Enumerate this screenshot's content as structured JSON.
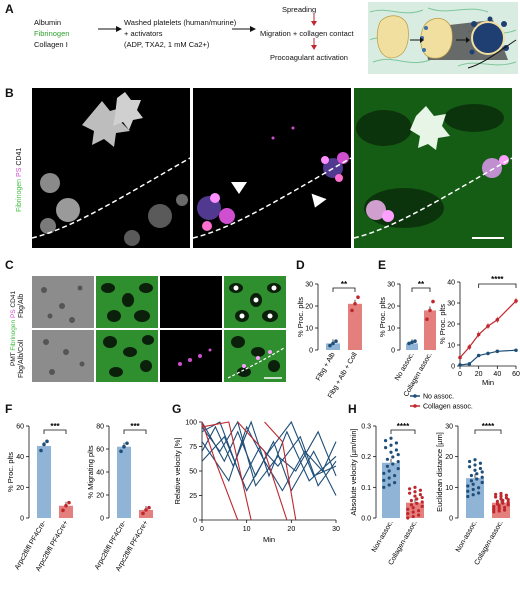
{
  "panelA": {
    "label": "A",
    "reagents": [
      "Albumin",
      "Fibrinogen",
      "Collagen I"
    ],
    "reagent_colors": [
      "#111111",
      "#2fa02f",
      "#111111"
    ],
    "treatment": [
      "Washed platelets (human/murine)",
      "+ activators",
      "(ADP, TXA2, 1 mM Ca2+)"
    ],
    "steps": [
      "Spreading",
      "Migration + collagen contact",
      "Procoagulant activation"
    ]
  },
  "panelB": {
    "label": "B",
    "side_label": [
      "Fibrinogen",
      "PS",
      "CD41"
    ],
    "side_colors": [
      "#3fbf3f",
      "#d04fd0",
      "#ffffff"
    ]
  },
  "panelC": {
    "label": "C",
    "side_label": [
      "PMT",
      "Fibrinogen",
      "PS",
      "CD41"
    ],
    "side_colors": [
      "#ffffff",
      "#3fbf3f",
      "#d04fd0",
      "#ffffff"
    ],
    "rows": [
      "Fbg/Alb",
      "Fbg/Alb/Coll"
    ]
  },
  "chart_data": [
    {
      "panel": "D",
      "type": "bar",
      "categories": [
        "Flbg + Alb",
        "Flbg + Alb + Coll"
      ],
      "values": [
        3,
        21
      ],
      "points": [
        [
          2,
          3,
          4
        ],
        [
          18,
          21,
          24
        ]
      ],
      "ylabel": "% Proc. plts",
      "ylim": [
        0,
        30
      ],
      "yticks": [
        0,
        10,
        20,
        30
      ],
      "significance": "**",
      "colors": [
        "#8fb4d6",
        "#e3807e"
      ]
    },
    {
      "panel": "E-left",
      "type": "bar",
      "categories": [
        "No assoc.",
        "Collagen assoc."
      ],
      "values": [
        3,
        18
      ],
      "points": [
        [
          3,
          3.5,
          4
        ],
        [
          14,
          18,
          22
        ]
      ],
      "ylabel": "% Proc. plts",
      "ylim": [
        0,
        30
      ],
      "yticks": [
        0,
        10,
        20,
        30
      ],
      "significance": "**",
      "colors": [
        "#8fb4d6",
        "#e3807e"
      ]
    },
    {
      "panel": "E-right",
      "type": "line",
      "x": [
        0,
        10,
        20,
        30,
        40,
        60
      ],
      "series": [
        {
          "name": "No assoc.",
          "color": "#1f4e79",
          "values": [
            0.5,
            1,
            5,
            6,
            7,
            7.5
          ]
        },
        {
          "name": "Collagen assoc.",
          "color": "#c0272d",
          "values": [
            4,
            9,
            15,
            19,
            22,
            31
          ]
        }
      ],
      "xlabel": "Min",
      "ylabel": "% Proc. plts",
      "xlim": [
        0,
        60
      ],
      "ylim": [
        0,
        40
      ],
      "xticks": [
        0,
        20,
        40,
        60
      ],
      "yticks": [
        0,
        10,
        20,
        30,
        40
      ],
      "significance": "****"
    },
    {
      "panel": "F-left",
      "type": "bar",
      "categories": [
        "Arpc2fl/fl PF4Cre-",
        "Arpc2fl/fl PF4Cre+"
      ],
      "values": [
        47,
        8
      ],
      "points": [
        [
          44,
          48,
          50
        ],
        [
          5,
          8,
          10
        ]
      ],
      "ylabel": "% Proc. plts",
      "ylim": [
        0,
        60
      ],
      "yticks": [
        0,
        20,
        40,
        60
      ],
      "significance": "***",
      "colors": [
        "#8fb4d6",
        "#e3807e"
      ]
    },
    {
      "panel": "F-right",
      "type": "bar",
      "categories": [
        "Arpc2fl/fl PF4Cre-",
        "Arpc2fl/fl PF4Cre+"
      ],
      "values": [
        62,
        7
      ],
      "points": [
        [
          58,
          62,
          65
        ],
        [
          4,
          7,
          9
        ]
      ],
      "ylabel": "% Migrating plts",
      "ylim": [
        0,
        80
      ],
      "yticks": [
        0,
        20,
        40,
        60,
        80
      ],
      "significance": "***",
      "colors": [
        "#8fb4d6",
        "#e3807e"
      ]
    },
    {
      "panel": "G",
      "type": "line",
      "xlabel": "Min",
      "ylabel": "Relative velocity [%]",
      "xlim": [
        0,
        30
      ],
      "ylim": [
        0,
        100
      ],
      "xticks": [
        0,
        10,
        20,
        30
      ],
      "yticks": [
        0,
        25,
        50,
        75,
        100
      ],
      "series": [
        {
          "color": "#1f4e79",
          "x": [
            0,
            5,
            8,
            12,
            16,
            20,
            25,
            30
          ],
          "values": [
            100,
            60,
            90,
            45,
            80,
            30,
            70,
            25
          ]
        },
        {
          "color": "#1f4e79",
          "x": [
            0,
            4,
            9,
            13,
            17,
            22,
            26,
            30
          ],
          "values": [
            90,
            100,
            40,
            75,
            55,
            85,
            35,
            60
          ]
        },
        {
          "color": "#1f4e79",
          "x": [
            0,
            6,
            10,
            14,
            18,
            23,
            27,
            30
          ],
          "values": [
            80,
            40,
            95,
            60,
            30,
            70,
            50,
            80
          ]
        },
        {
          "color": "#1f4e79",
          "x": [
            0,
            3,
            7,
            11,
            15,
            19,
            24,
            30
          ],
          "values": [
            70,
            95,
            55,
            100,
            45,
            90,
            40,
            65
          ]
        },
        {
          "color": "#1f4e79",
          "x": [
            0,
            5,
            10,
            15,
            20,
            25,
            30
          ],
          "values": [
            60,
            85,
            30,
            70,
            100,
            45,
            55
          ]
        },
        {
          "color": "#1f4e79",
          "x": [
            0,
            4,
            8,
            12,
            17,
            21,
            26,
            30
          ],
          "values": [
            95,
            70,
            100,
            35,
            65,
            50,
            90,
            45
          ]
        },
        {
          "color": "#c0272d",
          "x": [
            0,
            3,
            8
          ],
          "values": [
            100,
            60,
            0
          ]
        },
        {
          "color": "#c0272d",
          "x": [
            0,
            6,
            11
          ],
          "values": [
            95,
            100,
            0
          ]
        },
        {
          "color": "#c0272d",
          "x": [
            8,
            14,
            19
          ],
          "values": [
            100,
            70,
            0
          ]
        },
        {
          "color": "#c0272d",
          "x": [
            14,
            18,
            21
          ],
          "values": [
            100,
            80,
            0
          ]
        }
      ]
    },
    {
      "panel": "H-left",
      "type": "bar",
      "categories": [
        "Non-assoc.",
        "Collagen-assoc."
      ],
      "values": [
        0.18,
        0.05
      ],
      "points_spread": [
        0.08,
        0.05
      ],
      "ylabel": "Absolute velocity [µm/min]",
      "ylim": [
        0,
        0.3
      ],
      "yticks": [
        0,
        0.1,
        0.2,
        0.3
      ],
      "ytick_labels": [
        "0.0",
        "0.1",
        "0.2",
        "0.3"
      ],
      "significance": "****",
      "colors": [
        "#8fb4d6",
        "#e3807e"
      ]
    },
    {
      "panel": "H-right",
      "type": "bar",
      "categories": [
        "Non-assoc.",
        "Collagen-assoc."
      ],
      "values": [
        13,
        5
      ],
      "points_spread": [
        6,
        3
      ],
      "ylabel": "Euclidean distance [µm]",
      "ylim": [
        0,
        30
      ],
      "yticks": [
        0,
        10,
        20,
        30
      ],
      "significance": "****",
      "colors": [
        "#8fb4d6",
        "#e3807e"
      ]
    }
  ],
  "labels": {
    "D": "D",
    "E": "E",
    "F": "F",
    "G": "G",
    "H": "H"
  }
}
